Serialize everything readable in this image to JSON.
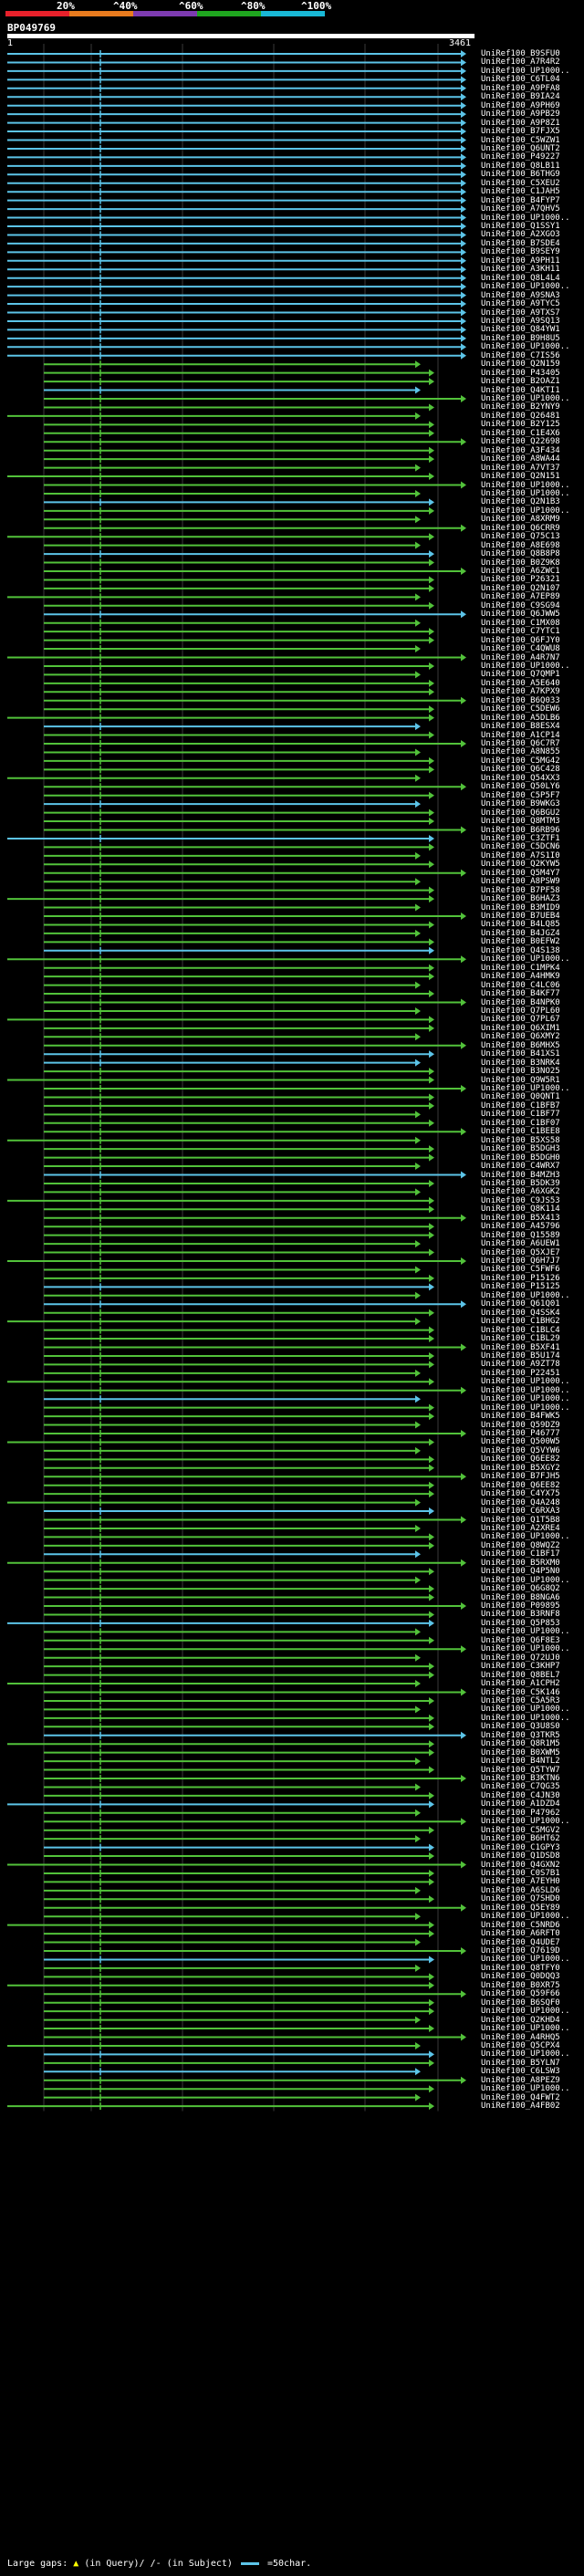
{
  "scale": {
    "labels": [
      "20%",
      "^40%",
      "^60%",
      "^80%",
      "^100%"
    ],
    "segments": [
      {
        "color": "#e8212b"
      },
      {
        "color": "#e87b1e"
      },
      {
        "color": "#7d3bb0"
      },
      {
        "color": "#1fa61f"
      },
      {
        "color": "#19b8d6"
      }
    ]
  },
  "query": {
    "name": "BP049769",
    "start_label": "1",
    "end_label": "3461"
  },
  "colors": {
    "cyan": "#5cc4e8",
    "green": "#52c23a",
    "grid": "#3a3a3a"
  },
  "hits": [
    "UniRef100_B9SFU0",
    "UniRef100_A7R4R2",
    "UniRef100_UP1000..",
    "UniRef100_C6TL04",
    "UniRef100_A9PFA8",
    "UniRef100_B9IA24",
    "UniRef100_A9PH69",
    "UniRef100_A9PB29",
    "UniRef100_A9P8Z1",
    "UniRef100_B7FJX5",
    "UniRef100_C5WZW1",
    "UniRef100_Q6UNT2",
    "UniRef100_P49227",
    "UniRef100_Q8LB11",
    "UniRef100_B6THG9",
    "UniRef100_C5XEU2",
    "UniRef100_C1JAH5",
    "UniRef100_B4FYP7",
    "UniRef100_A7QHV5",
    "UniRef100_UP1000..",
    "UniRef100_Q1SSY1",
    "UniRef100_A2XGO3",
    "UniRef100_B7SDE4",
    "UniRef100_B9SEY9",
    "UniRef100_A9PH11",
    "UniRef100_A3KH11",
    "UniRef100_Q8L4L4",
    "UniRef100_UP1000..",
    "UniRef100_A9SNA3",
    "UniRef100_A9TYC5",
    "UniRef100_A9TXS7",
    "UniRef100_A9SQ13",
    "UniRef100_Q84YW1",
    "UniRef100_B9H8U5",
    "UniRef100_UP1000..",
    "UniRef100_C7IS56",
    "UniRef100_Q2N159",
    "UniRef100_P43405",
    "UniRef100_B2OAZ1",
    "UniRef100_Q4KTI1",
    "UniRef100_UP1000..",
    "UniRef100_B2YNY9",
    "UniRef100_Q26481",
    "UniRef100_B2Y125",
    "UniRef100_C1E4X6",
    "UniRef100_Q22698",
    "UniRef100_A3F434",
    "UniRef100_A8WA44",
    "UniRef100_A7VT37",
    "UniRef100_Q2N151",
    "UniRef100_UP1000..",
    "UniRef100_UP1000..",
    "UniRef100_Q2N1B3",
    "UniRef100_UP1000..",
    "UniRef100_A8XRM9",
    "UniRef100_Q6CRR9",
    "UniRef100_Q75C13",
    "UniRef100_A8E698",
    "UniRef100_Q8B8P8",
    "UniRef100_B0Z9K8",
    "UniRef100_A6ZWC1",
    "UniRef100_P26321",
    "UniRef100_Q2N107",
    "UniRef100_A7EP89",
    "UniRef100_C9SG94",
    "UniRef100_Q6JWW5",
    "UniRef100_C1MX08",
    "UniRef100_C7YTC1",
    "UniRef100_Q6FJY0",
    "UniRef100_C4QWU8",
    "UniRef100_A4R7N7",
    "UniRef100_UP1000..",
    "UniRef100_Q7QMP1",
    "UniRef100_A5E640",
    "UniRef100_A7KPX9",
    "UniRef100_B6Q033",
    "UniRef100_C5DEW6",
    "UniRef100_A5DLB6",
    "UniRef100_B8ESX4",
    "UniRef100_A1CP14",
    "UniRef100_Q6C7R7",
    "UniRef100_A8N855",
    "UniRef100_C5MG42",
    "UniRef100_Q6C428",
    "UniRef100_Q54XX3",
    "UniRef100_Q50LY6",
    "UniRef100_C5P5F7",
    "UniRef100_B9WKG3",
    "UniRef100_Q6BGU2",
    "UniRef100_Q8MTM3",
    "UniRef100_B6RB96",
    "UniRef100_C3ZTF1",
    "UniRef100_C5DCN6",
    "UniRef100_A7S1I0",
    "UniRef100_Q2KYW5",
    "UniRef100_Q5M4Y7",
    "UniRef100_A8PSW9",
    "UniRef100_B7PF58",
    "UniRef100_B6HAZ3",
    "UniRef100_B3MID9",
    "UniRef100_B7UEB4",
    "UniRef100_B4LQ85",
    "UniRef100_B4JGZ4",
    "UniRef100_B0EFW2",
    "UniRef100_Q4S138",
    "UniRef100_UP1000..",
    "UniRef100_C1MPK4",
    "UniRef100_A4HMK9",
    "UniRef100_C4LC06",
    "UniRef100_B4KF77",
    "UniRef100_B4NPK0",
    "UniRef100_Q7PL60",
    "UniRef100_Q7PL67",
    "UniRef100_Q6XIM1",
    "UniRef100_Q6XMY2",
    "UniRef100_B6MHX5",
    "UniRef100_B41XS1",
    "UniRef100_B3NRK4",
    "UniRef100_B3NO25",
    "UniRef100_Q9W5R1",
    "UniRef100_UP1000..",
    "UniRef100_Q0QNT1",
    "UniRef100_C1BFB7",
    "UniRef100_C1BF77",
    "UniRef100_C1BF07",
    "UniRef100_C1BEE8",
    "UniRef100_B5XS58",
    "UniRef100_B5DGH3",
    "UniRef100_B5DGH0",
    "UniRef100_C4WRX7",
    "UniRef100_B4MZH3",
    "UniRef100_B5DK39",
    "UniRef100_A6XGK2",
    "UniRef100_C9JS53",
    "UniRef100_Q8K114",
    "UniRef100_B5X413",
    "UniRef100_A45796",
    "UniRef100_Q15589",
    "UniRef100_A6UEW1",
    "UniRef100_Q5XJE7",
    "UniRef100_Q6H7J7",
    "UniRef100_C5FWF6",
    "UniRef100_P15126",
    "UniRef100_P15125",
    "UniRef100_UP1000..",
    "UniRef100_Q61Q01",
    "UniRef100_Q4SSK4",
    "UniRef100_C1BHG2",
    "UniRef100_C1BLC4",
    "UniRef100_C1BL29",
    "UniRef100_B5XF41",
    "UniRef100_B5U174",
    "UniRef100_A9ZT78",
    "UniRef100_P22451",
    "UniRef100_UP1000..",
    "UniRef100_UP1000..",
    "UniRef100_UP1000..",
    "UniRef100_UP1000..",
    "UniRef100_B4FWK5",
    "UniRef100_Q59DZ9",
    "UniRef100_P46777",
    "UniRef100_Q500W5",
    "UniRef100_Q5VYW6",
    "UniRef100_Q6EE82",
    "UniRef100_B5XGY2",
    "UniRef100_B7FJH5",
    "UniRef100_Q6EE82",
    "UniRef100_C4YX75",
    "UniRef100_Q4A248",
    "UniRef100_C6RXA3",
    "UniRef100_Q1T5B8",
    "UniRef100_A2XRE4",
    "UniRef100_UP1000..",
    "UniRef100_Q8WQZ2",
    "UniRef100_C1BF17",
    "UniRef100_B5RXM0",
    "UniRef100_Q4P5N0",
    "UniRef100_UP1000..",
    "UniRef100_Q6G8Q2",
    "UniRef100_B8NGA6",
    "UniRef100_P09895",
    "UniRef100_B3RNF8",
    "UniRef100_Q5P853",
    "UniRef100_UP1000..",
    "UniRef100_Q6F8E3",
    "UniRef100_UP1000..",
    "UniRef100_Q72UJ0",
    "UniRef100_C3KHP7",
    "UniRef100_Q8BEL7",
    "UniRef100_A1CPH2",
    "UniRef100_C5K146",
    "UniRef100_C5A5R3",
    "UniRef100_UP1000..",
    "UniRef100_UP1000..",
    "UniRef100_Q3U8S0",
    "UniRef100_Q3TKR5",
    "UniRef100_Q8R1M5",
    "UniRef100_B0XWM5",
    "UniRef100_B4NTL2",
    "UniRef100_Q5TYW7",
    "UniRef100_B3KTN6",
    "UniRef100_C7QG35",
    "UniRef100_C4JN30",
    "UniRef100_A1DZD4",
    "UniRef100_P47962",
    "UniRef100_UP1000..",
    "UniRef100_C5MGV2",
    "UniRef100_B6HT62",
    "UniRef100_C1GPY3",
    "UniRef100_Q1DSD8",
    "UniRef100_Q4GXN2",
    "UniRef100_C0S7B1",
    "UniRef100_A7EYH0",
    "UniRef100_A6SLD6",
    "UniRef100_Q7SHD0",
    "UniRef100_Q5EY89",
    "UniRef100_UP1000..",
    "UniRef100_C5NRD6",
    "UniRef100_A6RFT0",
    "UniRef100_Q4UDE7",
    "UniRef100_Q7619D",
    "UniRef100_UP1000..",
    "UniRef100_Q8TFY0",
    "UniRef100_Q0DQQ3",
    "UniRef100_B0XR75",
    "UniRef100_Q59F66",
    "UniRef100_B6SQF0",
    "UniRef100_UP1000..",
    "UniRef100_Q2KHD4",
    "UniRef100_UP1000..",
    "UniRef100_A4RHQ5",
    "UniRef100_Q5CPX4",
    "UniRef100_UP1000..",
    "UniRef100_B5YLN7",
    "UniRef100_C6LSW3",
    "UniRef100_A8PEZ9",
    "UniRef100_UP1000..",
    "UniRef100_Q4FWT2",
    "UniRef100_A4FB02"
  ],
  "footer": {
    "large_gaps": "Large gaps:",
    "in_query": "(in Query)/",
    "in_subject": "(in Subject)",
    "scale_note": "=50char."
  }
}
